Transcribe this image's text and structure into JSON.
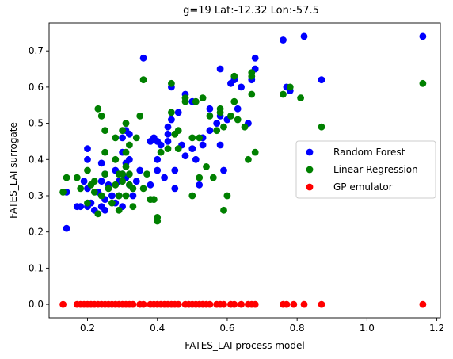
{
  "chart_data": {
    "type": "scatter",
    "title": "g=19 Lat:-12.32 Lon:-57.5",
    "xlabel": "FATES_LAI process model",
    "ylabel": "FATES_LAI surrogate",
    "xlim": [
      0.09,
      1.21
    ],
    "ylim": [
      -0.037,
      0.777
    ],
    "xticks": [
      "0.2",
      "0.4",
      "0.6",
      "0.8",
      "1.0",
      "1.2"
    ],
    "yticks": [
      "0.0",
      "0.1",
      "0.2",
      "0.3",
      "0.4",
      "0.5",
      "0.6",
      "0.7"
    ],
    "legend_position": "center-right",
    "series": [
      {
        "name": "Random Forest",
        "color": "#0000ff",
        "points": [
          [
            0.14,
            0.31
          ],
          [
            0.14,
            0.21
          ],
          [
            0.17,
            0.27
          ],
          [
            0.18,
            0.27
          ],
          [
            0.19,
            0.34
          ],
          [
            0.2,
            0.4
          ],
          [
            0.2,
            0.43
          ],
          [
            0.2,
            0.32
          ],
          [
            0.2,
            0.27
          ],
          [
            0.21,
            0.28
          ],
          [
            0.22,
            0.26
          ],
          [
            0.23,
            0.31
          ],
          [
            0.24,
            0.39
          ],
          [
            0.24,
            0.34
          ],
          [
            0.24,
            0.27
          ],
          [
            0.25,
            0.36
          ],
          [
            0.25,
            0.29
          ],
          [
            0.25,
            0.26
          ],
          [
            0.26,
            0.33
          ],
          [
            0.27,
            0.3
          ],
          [
            0.28,
            0.37
          ],
          [
            0.28,
            0.28
          ],
          [
            0.29,
            0.34
          ],
          [
            0.29,
            0.3
          ],
          [
            0.3,
            0.46
          ],
          [
            0.3,
            0.42
          ],
          [
            0.3,
            0.36
          ],
          [
            0.3,
            0.27
          ],
          [
            0.31,
            0.48
          ],
          [
            0.31,
            0.39
          ],
          [
            0.31,
            0.35
          ],
          [
            0.32,
            0.47
          ],
          [
            0.32,
            0.4
          ],
          [
            0.32,
            0.33
          ],
          [
            0.33,
            0.3
          ],
          [
            0.34,
            0.34
          ],
          [
            0.35,
            0.37
          ],
          [
            0.36,
            0.68
          ],
          [
            0.38,
            0.45
          ],
          [
            0.38,
            0.33
          ],
          [
            0.39,
            0.46
          ],
          [
            0.4,
            0.45
          ],
          [
            0.4,
            0.37
          ],
          [
            0.4,
            0.4
          ],
          [
            0.41,
            0.44
          ],
          [
            0.42,
            0.35
          ],
          [
            0.43,
            0.49
          ],
          [
            0.43,
            0.47
          ],
          [
            0.43,
            0.45
          ],
          [
            0.44,
            0.6
          ],
          [
            0.44,
            0.51
          ],
          [
            0.45,
            0.32
          ],
          [
            0.45,
            0.37
          ],
          [
            0.46,
            0.53
          ],
          [
            0.47,
            0.44
          ],
          [
            0.48,
            0.58
          ],
          [
            0.48,
            0.41
          ],
          [
            0.5,
            0.43
          ],
          [
            0.5,
            0.56
          ],
          [
            0.51,
            0.4
          ],
          [
            0.52,
            0.33
          ],
          [
            0.53,
            0.46
          ],
          [
            0.53,
            0.44
          ],
          [
            0.55,
            0.48
          ],
          [
            0.55,
            0.54
          ],
          [
            0.57,
            0.5
          ],
          [
            0.58,
            0.52
          ],
          [
            0.58,
            0.44
          ],
          [
            0.58,
            0.65
          ],
          [
            0.59,
            0.37
          ],
          [
            0.6,
            0.51
          ],
          [
            0.61,
            0.61
          ],
          [
            0.62,
            0.62
          ],
          [
            0.63,
            0.54
          ],
          [
            0.64,
            0.6
          ],
          [
            0.66,
            0.5
          ],
          [
            0.67,
            0.62
          ],
          [
            0.68,
            0.68
          ],
          [
            0.68,
            0.65
          ],
          [
            0.76,
            0.73
          ],
          [
            0.77,
            0.6
          ],
          [
            0.78,
            0.59
          ],
          [
            0.82,
            0.74
          ],
          [
            0.87,
            0.62
          ],
          [
            1.16,
            0.74
          ]
        ]
      },
      {
        "name": "Linear Regression",
        "color": "#008000",
        "points": [
          [
            0.13,
            0.31
          ],
          [
            0.14,
            0.35
          ],
          [
            0.17,
            0.35
          ],
          [
            0.18,
            0.32
          ],
          [
            0.2,
            0.37
          ],
          [
            0.2,
            0.28
          ],
          [
            0.21,
            0.33
          ],
          [
            0.22,
            0.34
          ],
          [
            0.22,
            0.31
          ],
          [
            0.23,
            0.25
          ],
          [
            0.23,
            0.54
          ],
          [
            0.24,
            0.52
          ],
          [
            0.24,
            0.3
          ],
          [
            0.25,
            0.48
          ],
          [
            0.25,
            0.42
          ],
          [
            0.25,
            0.36
          ],
          [
            0.26,
            0.32
          ],
          [
            0.27,
            0.28
          ],
          [
            0.28,
            0.33
          ],
          [
            0.28,
            0.4
          ],
          [
            0.28,
            0.46
          ],
          [
            0.29,
            0.36
          ],
          [
            0.29,
            0.26
          ],
          [
            0.29,
            0.3
          ],
          [
            0.3,
            0.36
          ],
          [
            0.3,
            0.34
          ],
          [
            0.3,
            0.48
          ],
          [
            0.31,
            0.38
          ],
          [
            0.31,
            0.42
          ],
          [
            0.31,
            0.3
          ],
          [
            0.31,
            0.5
          ],
          [
            0.32,
            0.44
          ],
          [
            0.32,
            0.36
          ],
          [
            0.32,
            0.33
          ],
          [
            0.33,
            0.32
          ],
          [
            0.33,
            0.27
          ],
          [
            0.34,
            0.46
          ],
          [
            0.35,
            0.52
          ],
          [
            0.36,
            0.62
          ],
          [
            0.36,
            0.32
          ],
          [
            0.37,
            0.36
          ],
          [
            0.38,
            0.29
          ],
          [
            0.39,
            0.29
          ],
          [
            0.4,
            0.23
          ],
          [
            0.4,
            0.24
          ],
          [
            0.41,
            0.42
          ],
          [
            0.43,
            0.43
          ],
          [
            0.44,
            0.61
          ],
          [
            0.44,
            0.53
          ],
          [
            0.45,
            0.47
          ],
          [
            0.46,
            0.43
          ],
          [
            0.46,
            0.48
          ],
          [
            0.48,
            0.57
          ],
          [
            0.48,
            0.56
          ],
          [
            0.5,
            0.46
          ],
          [
            0.5,
            0.3
          ],
          [
            0.51,
            0.56
          ],
          [
            0.52,
            0.35
          ],
          [
            0.52,
            0.46
          ],
          [
            0.53,
            0.57
          ],
          [
            0.54,
            0.38
          ],
          [
            0.55,
            0.52
          ],
          [
            0.56,
            0.35
          ],
          [
            0.57,
            0.48
          ],
          [
            0.58,
            0.53
          ],
          [
            0.58,
            0.54
          ],
          [
            0.59,
            0.26
          ],
          [
            0.59,
            0.49
          ],
          [
            0.6,
            0.3
          ],
          [
            0.61,
            0.52
          ],
          [
            0.62,
            0.63
          ],
          [
            0.62,
            0.56
          ],
          [
            0.63,
            0.51
          ],
          [
            0.65,
            0.49
          ],
          [
            0.66,
            0.4
          ],
          [
            0.67,
            0.63
          ],
          [
            0.67,
            0.64
          ],
          [
            0.67,
            0.58
          ],
          [
            0.68,
            0.42
          ],
          [
            0.76,
            0.58
          ],
          [
            0.78,
            0.6
          ],
          [
            0.81,
            0.57
          ],
          [
            0.87,
            0.49
          ],
          [
            1.16,
            0.61
          ]
        ]
      },
      {
        "name": "GP emulator",
        "color": "#ff0000",
        "points": [
          [
            0.13,
            0
          ],
          [
            0.17,
            0
          ],
          [
            0.18,
            0
          ],
          [
            0.19,
            0
          ],
          [
            0.2,
            0
          ],
          [
            0.21,
            0
          ],
          [
            0.22,
            0
          ],
          [
            0.23,
            0
          ],
          [
            0.24,
            0
          ],
          [
            0.25,
            0
          ],
          [
            0.26,
            0
          ],
          [
            0.27,
            0
          ],
          [
            0.28,
            0
          ],
          [
            0.29,
            0
          ],
          [
            0.3,
            0
          ],
          [
            0.31,
            0
          ],
          [
            0.32,
            0
          ],
          [
            0.33,
            0
          ],
          [
            0.35,
            0
          ],
          [
            0.36,
            0
          ],
          [
            0.38,
            0
          ],
          [
            0.39,
            0
          ],
          [
            0.4,
            0
          ],
          [
            0.41,
            0
          ],
          [
            0.42,
            0
          ],
          [
            0.43,
            0
          ],
          [
            0.44,
            0
          ],
          [
            0.45,
            0
          ],
          [
            0.46,
            0
          ],
          [
            0.48,
            0
          ],
          [
            0.49,
            0
          ],
          [
            0.5,
            0
          ],
          [
            0.51,
            0
          ],
          [
            0.52,
            0
          ],
          [
            0.53,
            0
          ],
          [
            0.54,
            0
          ],
          [
            0.55,
            0
          ],
          [
            0.57,
            0
          ],
          [
            0.58,
            0
          ],
          [
            0.59,
            0
          ],
          [
            0.61,
            0
          ],
          [
            0.62,
            0
          ],
          [
            0.64,
            0
          ],
          [
            0.66,
            0
          ],
          [
            0.67,
            0
          ],
          [
            0.68,
            0
          ],
          [
            0.76,
            0
          ],
          [
            0.77,
            0
          ],
          [
            0.79,
            0
          ],
          [
            0.82,
            0
          ],
          [
            0.87,
            0
          ],
          [
            1.16,
            0
          ]
        ]
      }
    ]
  }
}
